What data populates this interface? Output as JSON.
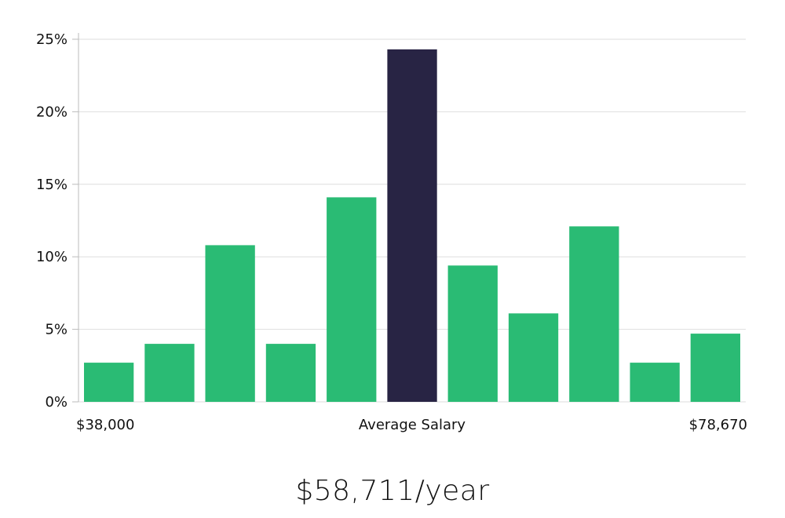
{
  "chart_data": {
    "type": "bar",
    "title": "",
    "xlabel": "Average Salary",
    "ylabel": "",
    "x_range_labels": {
      "min": "$38,000",
      "max": "$78,670"
    },
    "ylim": [
      0,
      25
    ],
    "yticks": [
      0,
      5,
      10,
      15,
      20,
      25
    ],
    "ytick_labels": [
      "0%",
      "5%",
      "10%",
      "15%",
      "20%",
      "25%"
    ],
    "grid": true,
    "values": [
      2.7,
      4.0,
      10.8,
      4.0,
      14.1,
      24.3,
      9.4,
      6.1,
      12.1,
      2.7,
      4.7
    ],
    "highlight_index": 5,
    "colors": {
      "bar": "#2abb74",
      "highlight": "#282444",
      "grid": "#dedede",
      "axis": "#bbbbbb"
    }
  },
  "summary": {
    "salary_text": "$58,711/year"
  }
}
